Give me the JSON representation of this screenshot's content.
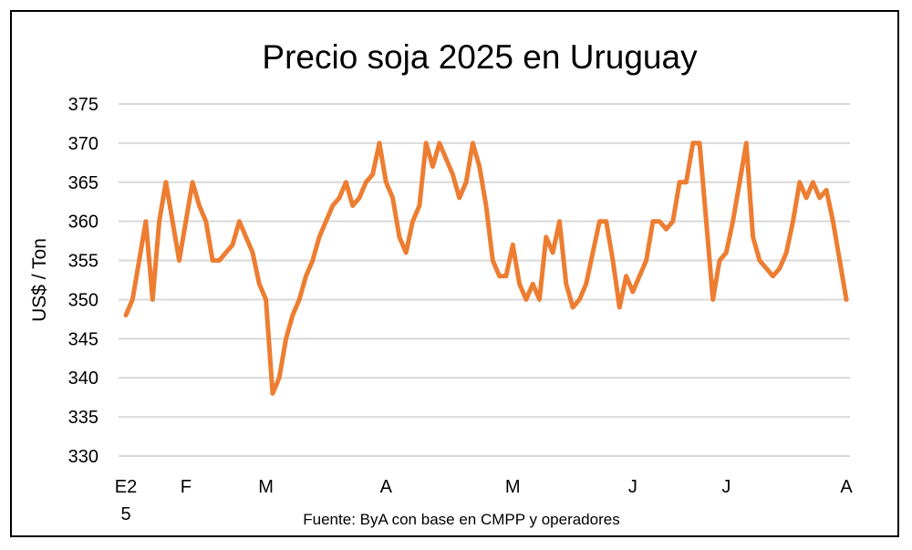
{
  "chart_data": {
    "type": "line",
    "title": "Precio soja 2025 en Uruguay",
    "xlabel": "",
    "ylabel": "US$ / Ton",
    "source": "Fuente: ByA con base en CMPP y operadores",
    "ylim": [
      330,
      375
    ],
    "yticks": [
      330,
      335,
      340,
      345,
      350,
      355,
      360,
      365,
      370,
      375
    ],
    "grid": true,
    "legend": "none",
    "line_color": "#ED7D31",
    "xticks": [
      {
        "label": "E2",
        "label2": "5",
        "index": 0
      },
      {
        "label": "F",
        "index": 9
      },
      {
        "label": "M",
        "index": 21
      },
      {
        "label": "A",
        "index": 39
      },
      {
        "label": "M",
        "index": 58
      },
      {
        "label": "J",
        "index": 76
      },
      {
        "label": "J",
        "index": 90
      },
      {
        "label": "A",
        "index": 108
      }
    ],
    "values": [
      348,
      350,
      355,
      360,
      350,
      360,
      365,
      360,
      355,
      360,
      365,
      362,
      360,
      355,
      355,
      356,
      357,
      360,
      358,
      356,
      352,
      350,
      338,
      340,
      345,
      348,
      350,
      353,
      355,
      358,
      360,
      362,
      363,
      365,
      362,
      363,
      365,
      366,
      370,
      365,
      363,
      358,
      356,
      360,
      362,
      370,
      367,
      370,
      368,
      366,
      363,
      365,
      370,
      367,
      362,
      355,
      353,
      353,
      357,
      352,
      350,
      352,
      350,
      358,
      356,
      360,
      352,
      349,
      350,
      352,
      356,
      360,
      360,
      355,
      349,
      353,
      351,
      353,
      355,
      360,
      360,
      359,
      360,
      365,
      365,
      370,
      370,
      360,
      350,
      355,
      356,
      360,
      365,
      370,
      358,
      355,
      354,
      353,
      354,
      356,
      360,
      365,
      363,
      365,
      363,
      364,
      360,
      355,
      350
    ]
  }
}
